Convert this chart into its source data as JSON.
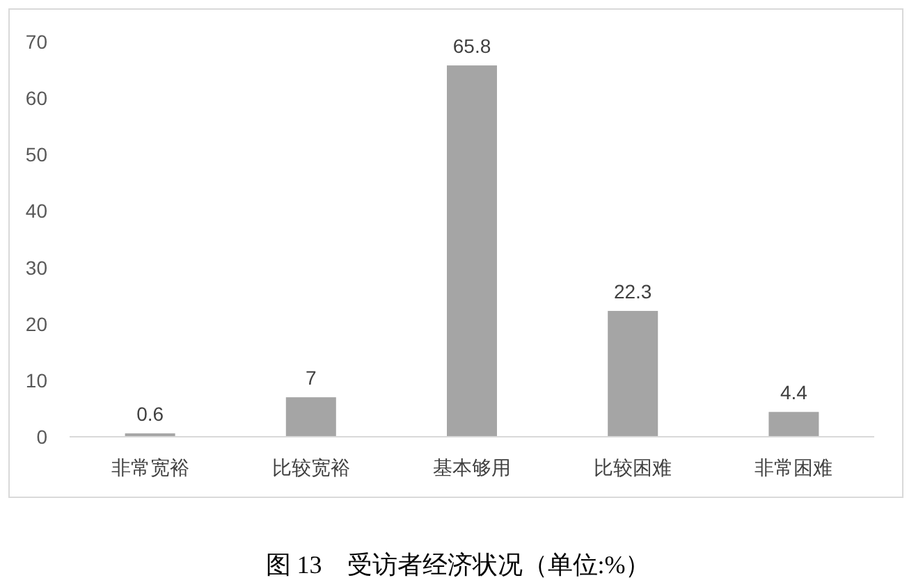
{
  "chart_data": {
    "type": "bar",
    "categories": [
      "非常宽裕",
      "比较宽裕",
      "基本够用",
      "比较困难",
      "非常困难"
    ],
    "values": [
      0.6,
      7,
      65.8,
      22.3,
      4.4
    ],
    "color": "#a5a5a5",
    "ylim": [
      0,
      70
    ],
    "yticks": [
      0,
      10,
      20,
      30,
      40,
      50,
      60,
      70
    ],
    "data_labels": true,
    "grid": false,
    "annotations": [
      "图 13　受访者经济状况（单位:%）"
    ]
  }
}
